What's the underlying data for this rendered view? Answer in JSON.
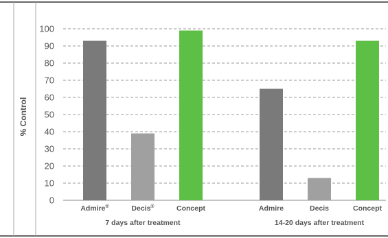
{
  "chart_data": {
    "type": "bar",
    "ylabel": "% Control",
    "ylim": [
      0,
      100
    ],
    "yticks": [
      "0",
      "10",
      "20",
      "30",
      "40",
      "50",
      "60",
      "70",
      "80",
      "90",
      "100"
    ],
    "grid": true,
    "colors": {
      "admire": "#7a7a7a",
      "decis": "#a0a0a0",
      "concept": "#5dbf45",
      "grid": "#9a9a9a",
      "frame": "#666666"
    },
    "groups": [
      {
        "label": "7 days after treatment",
        "bars": [
          {
            "category": "Admire",
            "superscript": "®",
            "value": 93,
            "color": "#7a7a7a"
          },
          {
            "category": "Decis",
            "superscript": "®",
            "value": 39,
            "color": "#a0a0a0"
          },
          {
            "category": "Concept",
            "superscript": "",
            "value": 99,
            "color": "#5dbf45"
          }
        ]
      },
      {
        "label": "14-20 days after treatment",
        "bars": [
          {
            "category": "Admire",
            "superscript": "",
            "value": 65,
            "color": "#7a7a7a"
          },
          {
            "category": "Decis",
            "superscript": "",
            "value": 13,
            "color": "#a0a0a0"
          },
          {
            "category": "Concept",
            "superscript": "",
            "value": 93,
            "color": "#5dbf45"
          }
        ]
      }
    ]
  }
}
